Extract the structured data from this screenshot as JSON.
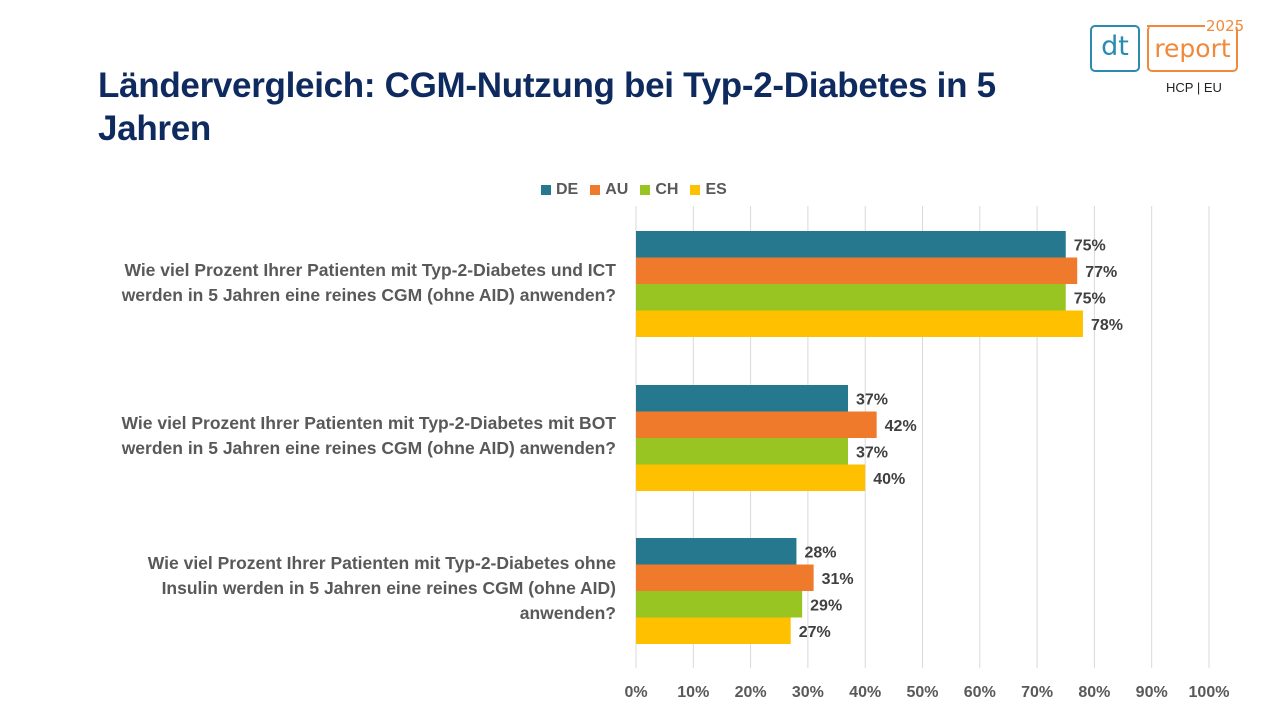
{
  "title": "Ländervergleich: CGM-Nutzung bei Typ-2-Diabetes in 5 Jahren",
  "logo": {
    "left_text": "dt",
    "right_text": "report",
    "year": "2025",
    "subtitle": "HCP | EU",
    "colors": {
      "dt": "#2a8ab0",
      "report": "#ef8a3c"
    }
  },
  "chart_data": {
    "type": "bar",
    "orientation": "horizontal",
    "title": "Ländervergleich: CGM-Nutzung bei Typ-2-Diabetes in 5 Jahren",
    "xlabel": "",
    "ylabel": "",
    "xlim": [
      0,
      100
    ],
    "x_ticks": [
      "0%",
      "10%",
      "20%",
      "30%",
      "40%",
      "50%",
      "60%",
      "70%",
      "80%",
      "90%",
      "100%"
    ],
    "grid": "vertical",
    "legend_position": "top",
    "categories": [
      "Wie viel Prozent Ihrer Patienten mit Typ-2-Diabetes und ICT werden in 5 Jahren eine reines CGM (ohne AID) anwenden?",
      "Wie viel Prozent Ihrer Patienten mit Typ-2-Diabetes mit BOT werden in 5 Jahren eine reines CGM (ohne AID) anwenden?",
      "Wie viel Prozent Ihrer Patienten mit Typ-2-Diabetes ohne Insulin werden in 5 Jahren eine reines CGM (ohne AID) anwenden?"
    ],
    "category_lines": [
      [
        "Wie viel Prozent Ihrer Patienten mit Typ-2-Diabetes und ICT",
        "werden in 5 Jahren eine reines CGM (ohne AID) anwenden?"
      ],
      [
        "Wie viel Prozent Ihrer Patienten mit Typ-2-Diabetes mit BOT",
        "werden in 5 Jahren eine reines CGM (ohne AID) anwenden?"
      ],
      [
        "Wie viel Prozent Ihrer Patienten mit Typ-2-Diabetes ohne",
        "Insulin werden in 5 Jahren eine reines CGM (ohne AID)",
        "anwenden?"
      ]
    ],
    "series": [
      {
        "name": "DE",
        "color": "#26788f",
        "values": [
          75,
          37,
          28
        ]
      },
      {
        "name": "AU",
        "color": "#f07a2c",
        "values": [
          77,
          42,
          31
        ]
      },
      {
        "name": "CH",
        "color": "#99c523",
        "values": [
          75,
          37,
          29
        ]
      },
      {
        "name": "ES",
        "color": "#ffc000",
        "values": [
          78,
          40,
          27
        ]
      }
    ],
    "value_suffix": "%"
  }
}
